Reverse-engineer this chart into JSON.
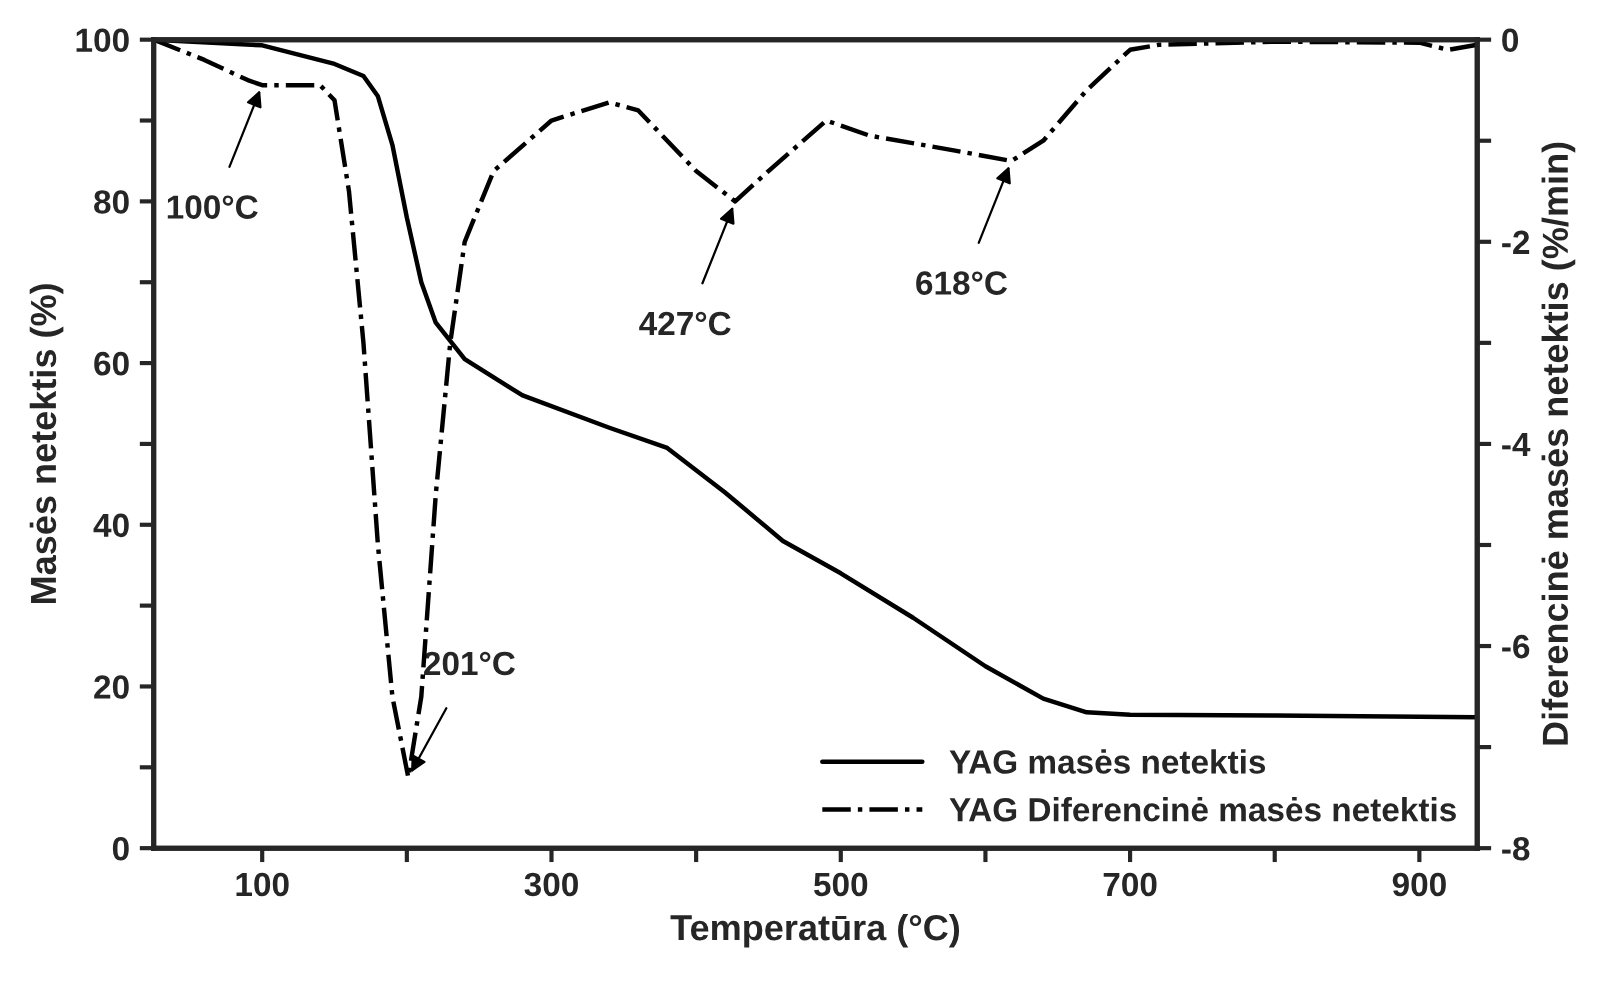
{
  "chart_data": {
    "type": "line",
    "xlabel": "Temperatūra (°C)",
    "ylabel": "Masės netektis (%)",
    "y2label": "Diferencinė masės netektis (%/min)",
    "xlim": [
      25,
      940
    ],
    "xticks": [
      100,
      {
        "value": 200,
        "label": null
      },
      300,
      {
        "value": 400,
        "label": null
      },
      500,
      {
        "value": 600,
        "label": null
      },
      700,
      {
        "value": 800,
        "label": null
      },
      900
    ],
    "ylim": [
      0,
      100
    ],
    "yticks": [
      0,
      {
        "value": 10,
        "label": null
      },
      20,
      {
        "value": 30,
        "label": null
      },
      40,
      {
        "value": 50,
        "label": null
      },
      60,
      {
        "value": 70,
        "label": null
      },
      80,
      {
        "value": 90,
        "label": null
      },
      100
    ],
    "y2lim": [
      -8,
      0
    ],
    "y2ticks": [
      {
        "value": -8,
        "label": "-8"
      },
      {
        "value": -7,
        "label": null
      },
      {
        "value": -6,
        "label": "-6"
      },
      {
        "value": -5,
        "label": null
      },
      {
        "value": -4,
        "label": "-4"
      },
      {
        "value": -3,
        "label": null
      },
      {
        "value": -2,
        "label": "-2"
      },
      {
        "value": -1,
        "label": null
      },
      0
    ],
    "legend": "bottom right",
    "grid": false,
    "series": [
      {
        "name": "YAG masės netektis",
        "color": "#000000",
        "line_style": "solid",
        "x": [
          25,
          100,
          150,
          170,
          180,
          190,
          200,
          210,
          220,
          240,
          280,
          340,
          380,
          420,
          460,
          500,
          550,
          600,
          640,
          670,
          700,
          800,
          940
        ],
        "values": [
          100,
          99.3,
          97,
          95.5,
          93,
          87,
          78,
          70,
          65,
          60.5,
          56,
          52,
          49.5,
          44,
          38,
          34,
          28.5,
          22.5,
          18.5,
          16.8,
          16.5,
          16.4,
          16.2
        ]
      },
      {
        "name": "YAG Diferencinė masės netektis",
        "color": "#000000",
        "line_style": "dashdot",
        "axis": "y2",
        "x": [
          25,
          60,
          90,
          100,
          140,
          150,
          160,
          170,
          180,
          190,
          201,
          210,
          220,
          230,
          240,
          260,
          300,
          340,
          360,
          400,
          427,
          450,
          490,
          520,
          580,
          618,
          640,
          670,
          700,
          720,
          800,
          900,
          920,
          940
        ],
        "values": [
          0,
          -0.2,
          -0.4,
          -0.45,
          -0.45,
          -0.6,
          -1.5,
          -3,
          -5,
          -6.5,
          -7.3,
          -6.5,
          -4.5,
          -3,
          -2,
          -1.3,
          -0.8,
          -0.62,
          -0.7,
          -1.3,
          -1.6,
          -1.3,
          -0.8,
          -0.95,
          -1.1,
          -1.2,
          -1.0,
          -0.5,
          -0.1,
          -0.05,
          -0.02,
          -0.03,
          -0.1,
          -0.05
        ]
      }
    ],
    "annotations": [
      {
        "text": "100°C",
        "x": 100,
        "y": 94.4
      },
      {
        "text": "201°C",
        "x": 201,
        "y": 8.75
      },
      {
        "text": "427°C",
        "x": 427,
        "y": 80
      },
      {
        "text": "618°C",
        "x": 618,
        "y": 85
      }
    ]
  }
}
